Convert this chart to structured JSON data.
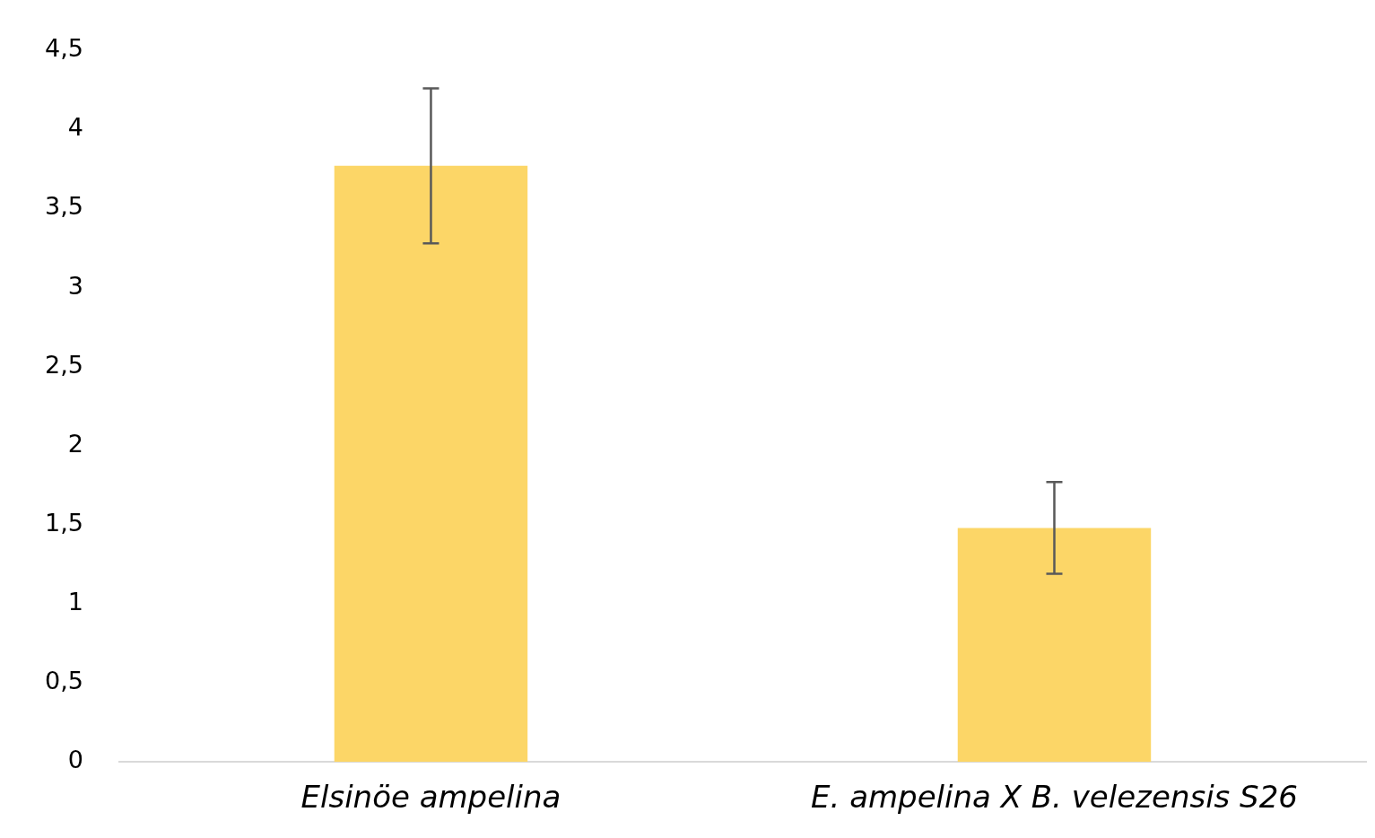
{
  "chart_data": {
    "type": "bar",
    "categories": [
      "Elsinöe ampelina",
      "E. ampelina X B. velezensis S26"
    ],
    "values": [
      3.77,
      1.48
    ],
    "errors": [
      0.49,
      0.29
    ],
    "color": "#fcd667",
    "ylim": [
      0,
      4.5
    ],
    "yticks": [
      {
        "value": 0,
        "label": "0"
      },
      {
        "value": 0.5,
        "label": "0,5"
      },
      {
        "value": 1,
        "label": "1"
      },
      {
        "value": 1.5,
        "label": "1,5"
      },
      {
        "value": 2,
        "label": "2"
      },
      {
        "value": 2.5,
        "label": "2,5"
      },
      {
        "value": 3,
        "label": "3"
      },
      {
        "value": 3.5,
        "label": "3,5"
      },
      {
        "value": 4,
        "label": "4"
      },
      {
        "value": 4.5,
        "label": "4,5"
      }
    ],
    "grid": false,
    "legend": false
  }
}
